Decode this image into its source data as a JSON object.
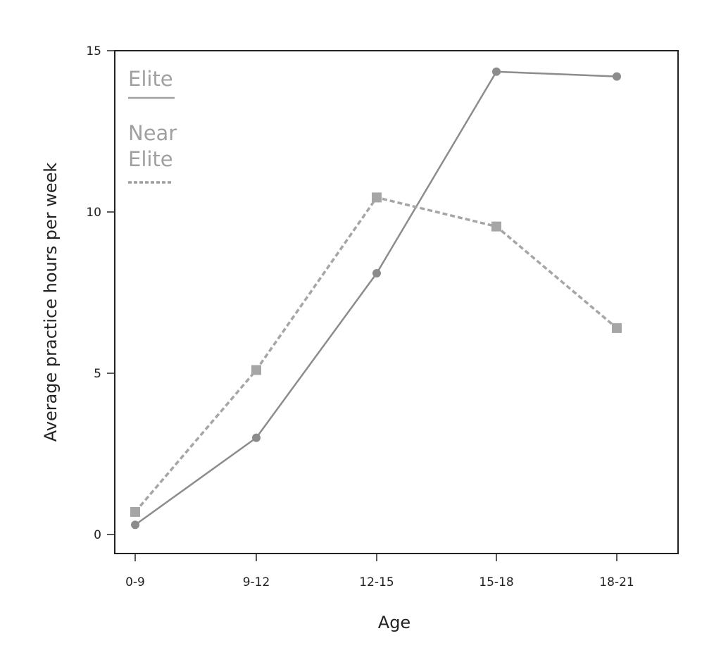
{
  "chart_data": {
    "type": "line",
    "title": "",
    "xlabel": "Age",
    "ylabel": "Average practice hours per week",
    "categories": [
      "0-9",
      "9-12",
      "12-15",
      "15-18",
      "18-21"
    ],
    "yticks": [
      "0",
      "5",
      "10",
      "15"
    ],
    "ylim": [
      0,
      15
    ],
    "grid": false,
    "legend_position": "top-left",
    "series": [
      {
        "name": "Elite",
        "values": [
          0.3,
          3.0,
          8.1,
          14.35,
          14.2
        ],
        "line_style": "solid",
        "marker": "circle",
        "color": "#8c8c8c"
      },
      {
        "name": "Near Elite",
        "values": [
          0.7,
          5.1,
          10.45,
          9.55,
          6.4
        ],
        "line_style": "dashed",
        "marker": "square",
        "color": "#a6a6a6"
      }
    ]
  },
  "colors": {
    "axis": "#222222",
    "legend_text": "#a0a0a0"
  }
}
